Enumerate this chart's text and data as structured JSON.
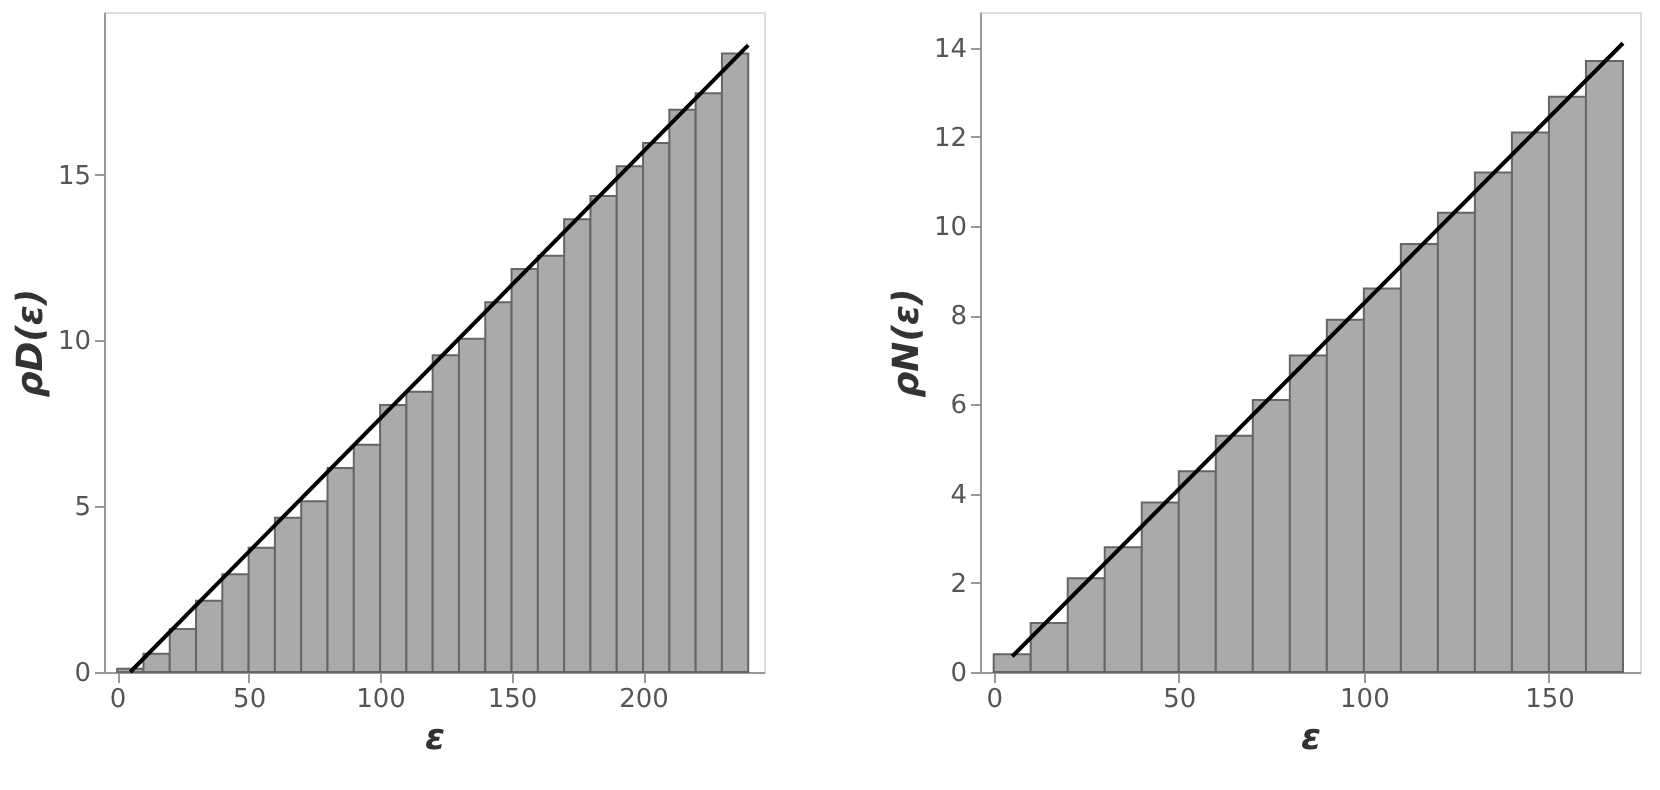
{
  "chart_data": [
    {
      "type": "histogram",
      "xlabel": "ε",
      "ylabel": "ρD(ε)",
      "bins": [
        0,
        10,
        20,
        30,
        40,
        50,
        60,
        70,
        80,
        90,
        100,
        110,
        120,
        130,
        140,
        150,
        160,
        170,
        180,
        190,
        200,
        210,
        220,
        230,
        240
      ],
      "values": [
        0.1,
        0.55,
        1.3,
        2.15,
        2.95,
        3.75,
        4.65,
        5.15,
        6.15,
        6.85,
        8.05,
        8.45,
        9.55,
        10.05,
        11.15,
        12.15,
        12.55,
        13.65,
        14.35,
        15.25,
        15.95,
        16.95,
        17.45,
        18.65
      ],
      "color": "#aaaaaa",
      "series": [
        {
          "type": "line",
          "x": [
            5,
            240
          ],
          "values": [
            0,
            18.9
          ],
          "color": "#000000"
        }
      ],
      "xlim": [
        -5,
        246
      ],
      "ylim": [
        0,
        19.9
      ],
      "xticks": [
        0,
        50,
        100,
        150,
        200
      ],
      "yticks": [
        0,
        5,
        10,
        15
      ],
      "grid": false
    },
    {
      "type": "histogram",
      "xlabel": "ε",
      "ylabel": "ρN(ε)",
      "bins": [
        0,
        10,
        20,
        30,
        40,
        50,
        60,
        70,
        80,
        90,
        100,
        110,
        120,
        130,
        140,
        150,
        160,
        170
      ],
      "values": [
        0.4,
        1.1,
        2.1,
        2.8,
        3.8,
        4.5,
        5.3,
        6.1,
        7.1,
        7.9,
        8.6,
        9.6,
        10.3,
        11.2,
        12.1,
        12.9,
        13.7
      ],
      "color": "#aaaaaa",
      "series": [
        {
          "type": "line",
          "x": [
            5,
            170
          ],
          "values": [
            0.35,
            14.1
          ],
          "color": "#000000"
        }
      ],
      "xlim": [
        -3.7,
        174.6
      ],
      "ylim": [
        0,
        14.8
      ],
      "xticks": [
        0,
        50,
        100,
        150
      ],
      "yticks": [
        0,
        2,
        4,
        6,
        8,
        10,
        12,
        14
      ],
      "grid": false
    }
  ]
}
